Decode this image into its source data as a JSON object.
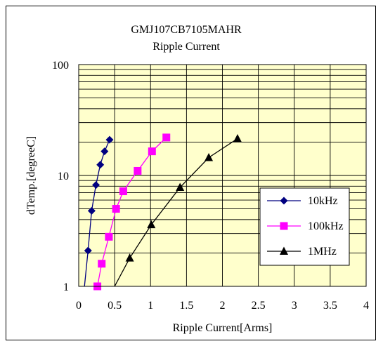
{
  "chart_data": {
    "type": "line",
    "title": "GMJ107CB7105MAHR",
    "subtitle": "Ripple Current",
    "xlabel": "Ripple Current[Arms]",
    "ylabel": "dTemp.[degreeC]",
    "xlim": [
      0,
      4
    ],
    "ylim": [
      1,
      100
    ],
    "yscale": "log",
    "x_ticks": [
      "0",
      "0.5",
      "1",
      "1.5",
      "2",
      "2.5",
      "3",
      "3.5",
      "4"
    ],
    "y_ticks": [
      "1",
      "10",
      "100"
    ],
    "grid": true,
    "plot_background": "#ffffcc",
    "legend_position": "lower-right",
    "series": [
      {
        "name": "10kHz",
        "color": "#000080",
        "marker": "diamond",
        "line_x": [
          0.08,
          0.13,
          0.18,
          0.24,
          0.3,
          0.36,
          0.43
        ],
        "line_y": [
          1.0,
          2.1,
          4.8,
          8.2,
          12.5,
          16.5,
          21.0
        ],
        "marker_x": [
          0.13,
          0.18,
          0.24,
          0.3,
          0.36,
          0.43
        ],
        "marker_y": [
          2.1,
          4.8,
          8.2,
          12.5,
          16.5,
          21.0
        ]
      },
      {
        "name": "100kHz",
        "color": "#ff00ff",
        "marker": "square",
        "line_x": [
          0.26,
          0.32,
          0.42,
          0.52,
          0.62,
          0.82,
          1.02,
          1.22
        ],
        "line_y": [
          1.0,
          1.6,
          2.8,
          5.0,
          7.2,
          11.0,
          16.5,
          22.0
        ],
        "marker_x": [
          0.26,
          0.32,
          0.42,
          0.52,
          0.62,
          0.82,
          1.02,
          1.22
        ],
        "marker_y": [
          1.0,
          1.6,
          2.8,
          5.0,
          7.2,
          11.0,
          16.5,
          22.0
        ]
      },
      {
        "name": "1MHz",
        "color": "#000000",
        "marker": "triangle",
        "line_x": [
          0.5,
          0.71,
          1.01,
          1.41,
          1.81,
          2.21
        ],
        "line_y": [
          1.0,
          1.8,
          3.6,
          7.8,
          14.5,
          21.5
        ],
        "marker_x": [
          0.71,
          1.01,
          1.41,
          1.81,
          2.21
        ],
        "marker_y": [
          1.8,
          3.6,
          7.8,
          14.5,
          21.5
        ]
      }
    ]
  }
}
